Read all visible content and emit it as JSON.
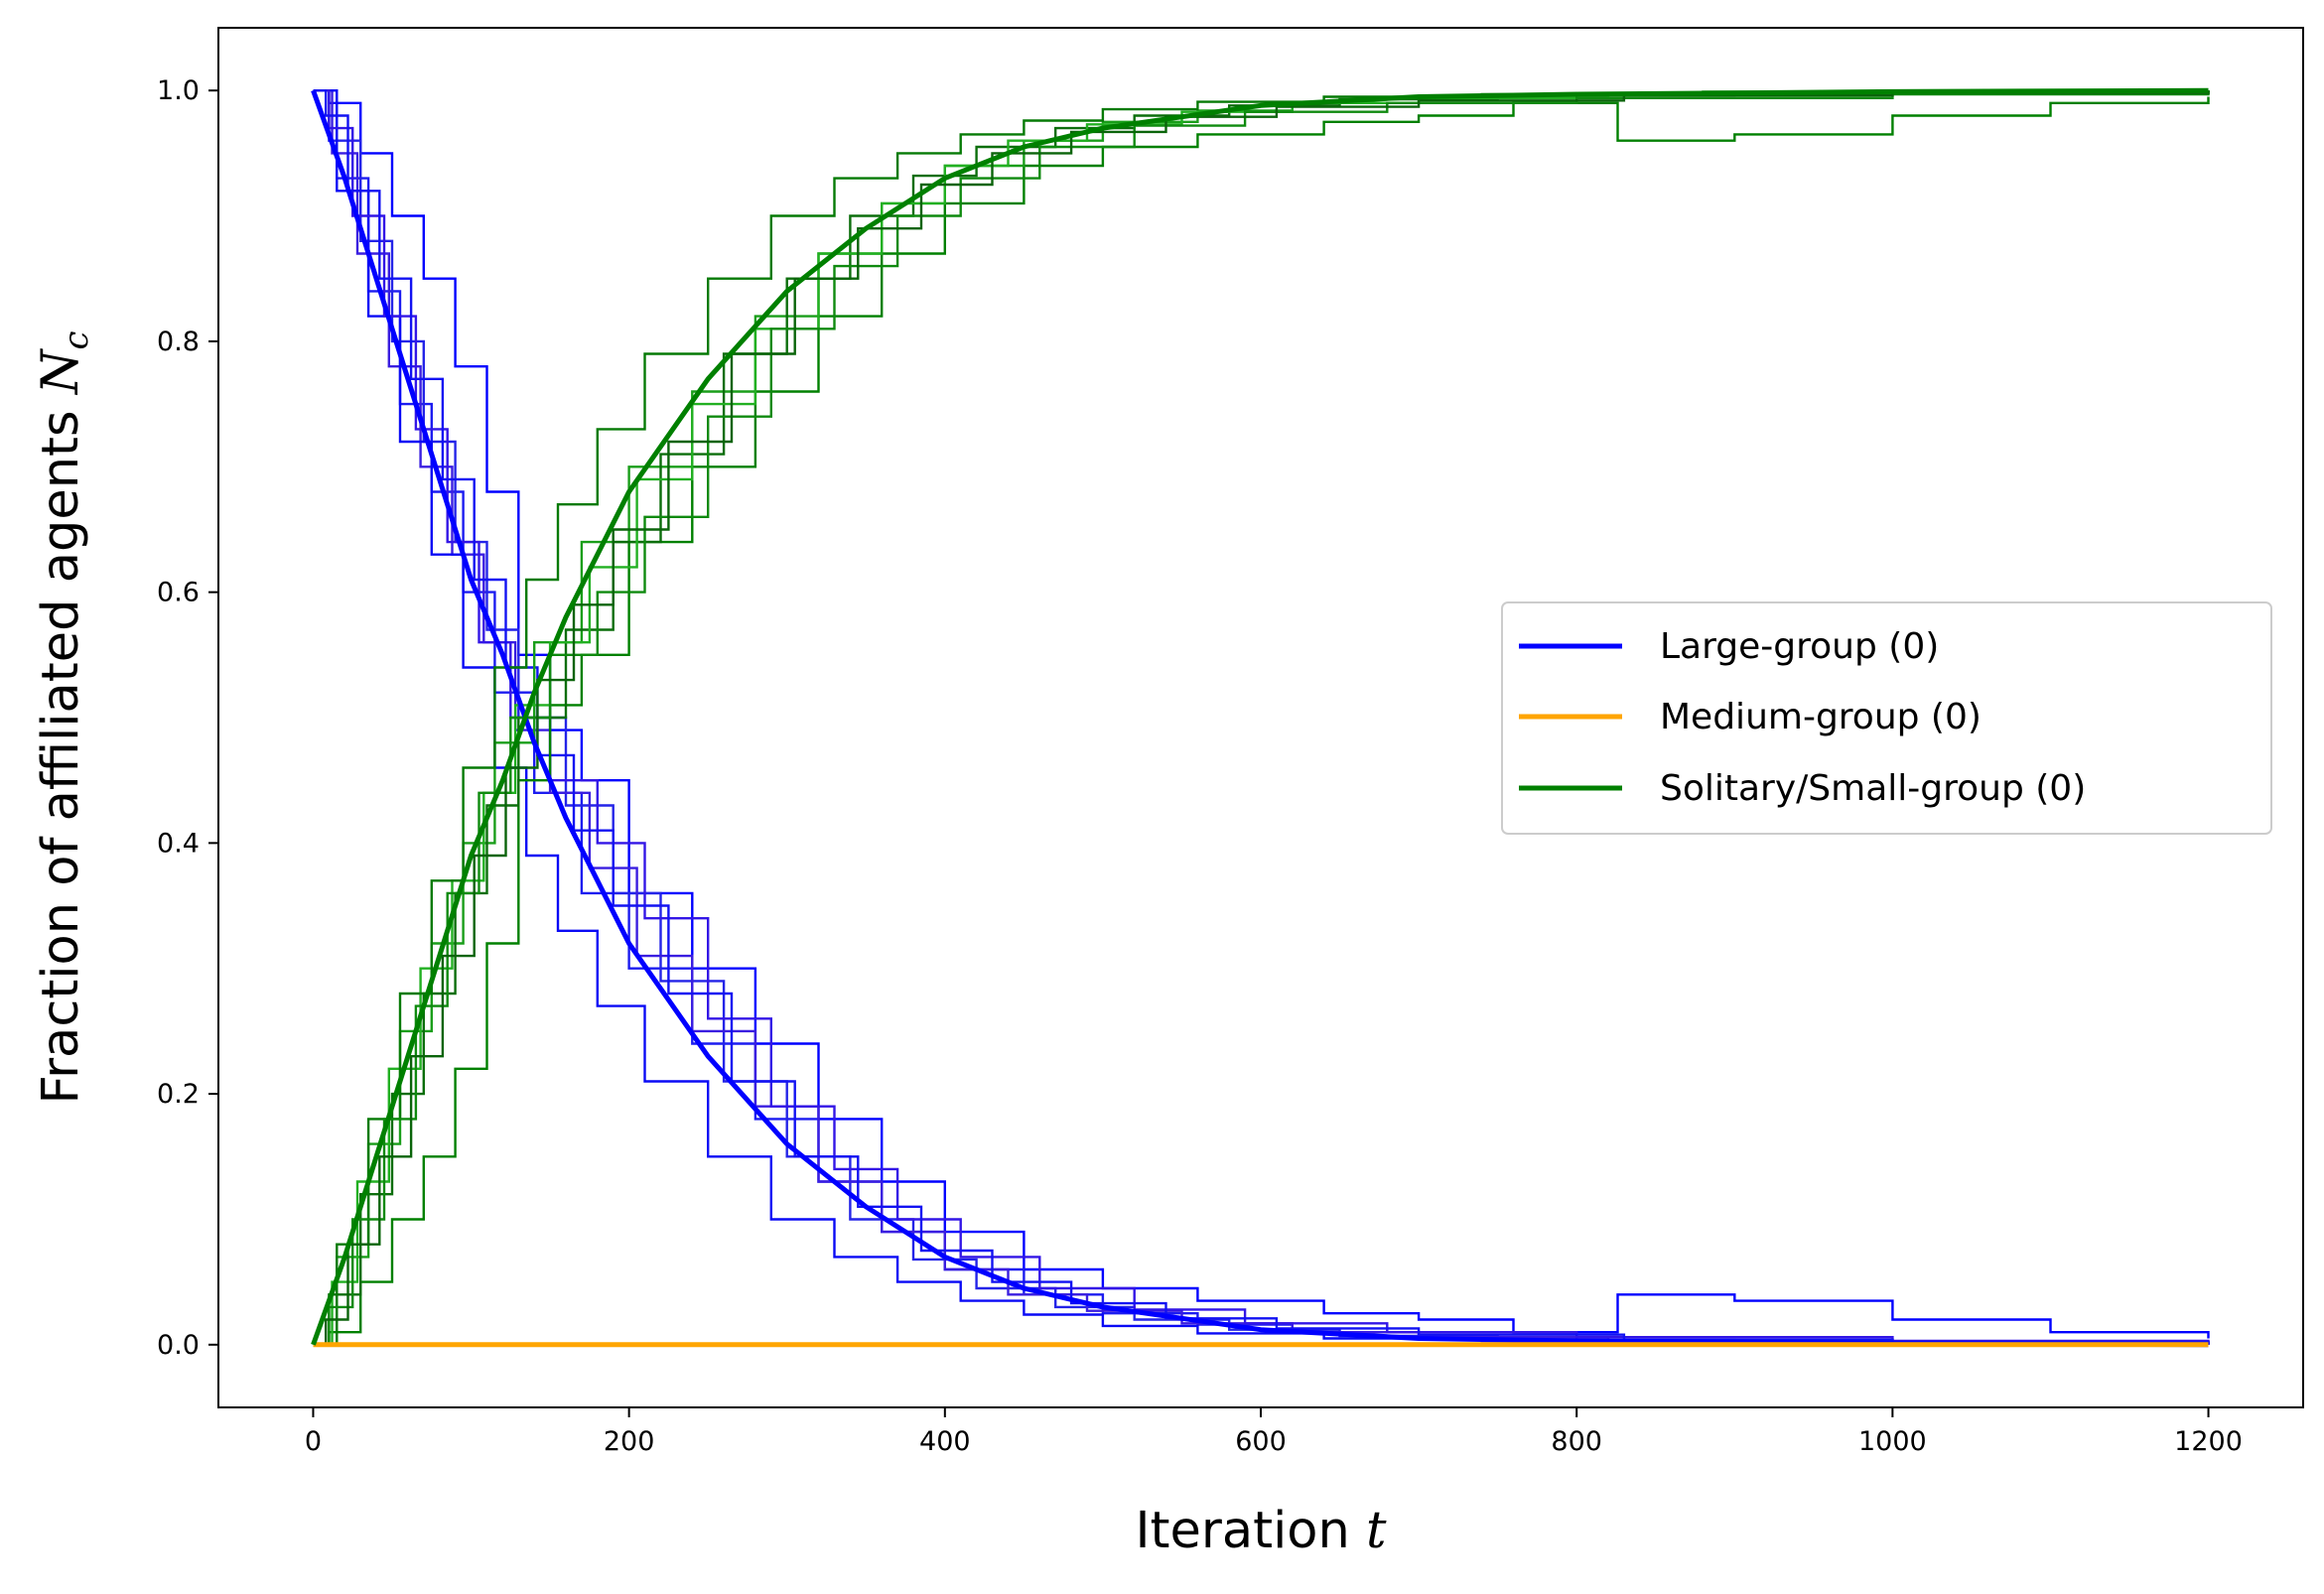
{
  "chart_data": {
    "type": "line",
    "title": "",
    "xlabel": "Iteration",
    "xlabel_symbol": "t",
    "ylabel": "Fraction of affiliated agents",
    "ylabel_symbol": "N",
    "ylabel_symbol_sub": "c",
    "xlim": [
      -60,
      1260
    ],
    "ylim": [
      -0.05,
      1.05
    ],
    "x_ticks": [
      0,
      200,
      400,
      600,
      800,
      1000,
      1200
    ],
    "x_tick_labels": [
      "0",
      "200",
      "400",
      "600",
      "800",
      "1000",
      "1200"
    ],
    "y_ticks": [
      0.0,
      0.2,
      0.4,
      0.6,
      0.8,
      1.0
    ],
    "y_tick_labels": [
      "0.0",
      "0.2",
      "0.4",
      "0.6",
      "0.8",
      "1.0"
    ],
    "grid": false,
    "legend_position": "center-right",
    "legend": [
      {
        "label": "Large-group (0)",
        "color": "#0000ff"
      },
      {
        "label": "Medium-group (0)",
        "color": "#ffa500"
      },
      {
        "label": "Solitary/Small-group (0)",
        "color": "#008000"
      }
    ],
    "series": [
      {
        "name": "Large-group (0)",
        "color": "#0000ff",
        "x": [
          0,
          20,
          40,
          60,
          80,
          100,
          120,
          140,
          160,
          180,
          200,
          250,
          300,
          350,
          400,
          450,
          500,
          600,
          700,
          800,
          1000,
          1200
        ],
        "y": [
          1.0,
          0.93,
          0.85,
          0.77,
          0.69,
          0.61,
          0.55,
          0.48,
          0.42,
          0.37,
          0.32,
          0.23,
          0.16,
          0.11,
          0.07,
          0.045,
          0.03,
          0.012,
          0.005,
          0.003,
          0.001,
          0.0
        ]
      },
      {
        "name": "Medium-group (0)",
        "color": "#ffa500",
        "x": [
          0,
          1200
        ],
        "y": [
          0.0,
          0.0
        ]
      },
      {
        "name": "Solitary/Small-group (0)",
        "color": "#008000",
        "x": [
          0,
          20,
          40,
          60,
          80,
          100,
          120,
          140,
          160,
          180,
          200,
          250,
          300,
          350,
          400,
          450,
          500,
          600,
          700,
          800,
          1000,
          1200
        ],
        "y": [
          0.0,
          0.07,
          0.15,
          0.23,
          0.31,
          0.39,
          0.45,
          0.52,
          0.58,
          0.63,
          0.68,
          0.77,
          0.84,
          0.89,
          0.93,
          0.955,
          0.97,
          0.988,
          0.995,
          0.997,
          0.999,
          1.0
        ]
      }
    ],
    "runs": [
      {
        "group": "Large-group (0)",
        "color": "#0000ff",
        "x": [
          0,
          10,
          30,
          50,
          70,
          90,
          110,
          130,
          150,
          170,
          200,
          240,
          280,
          320,
          360,
          400,
          450,
          500,
          560,
          640,
          700,
          760,
          826,
          900,
          1000,
          1100,
          1200
        ],
        "y": [
          1.0,
          0.99,
          0.95,
          0.9,
          0.85,
          0.78,
          0.68,
          0.55,
          0.49,
          0.45,
          0.36,
          0.3,
          0.24,
          0.18,
          0.13,
          0.09,
          0.06,
          0.045,
          0.035,
          0.025,
          0.02,
          0.01,
          0.04,
          0.035,
          0.02,
          0.01,
          0.005
        ]
      },
      {
        "group": "Large-group (0)",
        "color": "#1c1cf0",
        "x": [
          0,
          15,
          35,
          55,
          75,
          95,
          115,
          140,
          170,
          200,
          240,
          280,
          320,
          360,
          400,
          450,
          500,
          560,
          620,
          700,
          800,
          1000,
          1200
        ],
        "y": [
          1.0,
          0.93,
          0.84,
          0.75,
          0.68,
          0.6,
          0.52,
          0.44,
          0.36,
          0.3,
          0.24,
          0.18,
          0.13,
          0.09,
          0.06,
          0.04,
          0.025,
          0.016,
          0.01,
          0.006,
          0.004,
          0.002,
          0.0
        ]
      },
      {
        "group": "Large-group (0)",
        "color": "#2424e8",
        "x": [
          0,
          10,
          30,
          50,
          70,
          90,
          110,
          130,
          160,
          190,
          220,
          260,
          300,
          340,
          380,
          420,
          470,
          520,
          580,
          650,
          750,
          900,
          1200
        ],
        "y": [
          1.0,
          0.96,
          0.88,
          0.8,
          0.72,
          0.64,
          0.57,
          0.5,
          0.43,
          0.36,
          0.29,
          0.21,
          0.15,
          0.1,
          0.068,
          0.045,
          0.03,
          0.02,
          0.012,
          0.007,
          0.004,
          0.002,
          0.0
        ]
      },
      {
        "group": "Large-group (0)",
        "color": "#3a1ee0",
        "x": [
          0,
          12,
          28,
          48,
          68,
          88,
          108,
          128,
          150,
          175,
          205,
          240,
          280,
          320,
          360,
          400,
          440,
          490,
          550,
          620,
          700,
          820,
          1000,
          1200
        ],
        "y": [
          1.0,
          0.95,
          0.87,
          0.78,
          0.7,
          0.63,
          0.56,
          0.49,
          0.44,
          0.38,
          0.31,
          0.25,
          0.19,
          0.13,
          0.09,
          0.06,
          0.04,
          0.027,
          0.017,
          0.01,
          0.006,
          0.003,
          0.001,
          0.0
        ]
      },
      {
        "group": "Large-group (0)",
        "color": "#0a0af5",
        "x": [
          0,
          15,
          35,
          55,
          75,
          95,
          115,
          135,
          155,
          180,
          210,
          250,
          290,
          330,
          370,
          410,
          450,
          500,
          560,
          640,
          740,
          880,
          1200
        ],
        "y": [
          1.0,
          0.92,
          0.82,
          0.72,
          0.63,
          0.54,
          0.46,
          0.39,
          0.33,
          0.27,
          0.21,
          0.15,
          0.1,
          0.07,
          0.05,
          0.035,
          0.024,
          0.015,
          0.009,
          0.005,
          0.003,
          0.001,
          0.0
        ]
      },
      {
        "group": "Large-group (0)",
        "color": "#3316e6",
        "x": [
          0,
          10,
          25,
          45,
          65,
          85,
          105,
          125,
          150,
          180,
          210,
          250,
          290,
          330,
          370,
          410,
          460,
          520,
          590,
          680,
          800,
          1000,
          1200
        ],
        "y": [
          1.0,
          0.97,
          0.9,
          0.82,
          0.73,
          0.64,
          0.56,
          0.5,
          0.45,
          0.4,
          0.34,
          0.26,
          0.19,
          0.14,
          0.1,
          0.07,
          0.045,
          0.028,
          0.017,
          0.01,
          0.006,
          0.003,
          0.0
        ]
      },
      {
        "group": "Large-group (0)",
        "color": "#1212f2",
        "x": [
          0,
          8,
          22,
          42,
          62,
          82,
          102,
          122,
          142,
          165,
          190,
          225,
          265,
          305,
          345,
          385,
          430,
          480,
          540,
          610,
          700,
          830,
          1000,
          1200
        ],
        "y": [
          1.0,
          0.98,
          0.92,
          0.85,
          0.77,
          0.69,
          0.61,
          0.54,
          0.47,
          0.41,
          0.35,
          0.28,
          0.21,
          0.15,
          0.11,
          0.075,
          0.05,
          0.033,
          0.021,
          0.013,
          0.008,
          0.004,
          0.002,
          0.0
        ]
      }
    ],
    "runs_green": [
      {
        "group": "Solitary/Small-group (0)",
        "color": "#008000",
        "x": [
          0,
          10,
          30,
          50,
          70,
          90,
          110,
          130,
          150,
          170,
          200,
          240,
          280,
          320,
          360,
          400,
          450,
          500,
          560,
          640,
          700,
          760,
          826,
          900,
          1000,
          1100,
          1200
        ],
        "y": [
          0.0,
          0.01,
          0.05,
          0.1,
          0.15,
          0.22,
          0.32,
          0.45,
          0.51,
          0.55,
          0.64,
          0.7,
          0.76,
          0.82,
          0.87,
          0.91,
          0.94,
          0.955,
          0.965,
          0.975,
          0.98,
          0.99,
          0.96,
          0.965,
          0.98,
          0.99,
          0.995
        ]
      },
      {
        "group": "Solitary/Small-group (0)",
        "color": "#1a9e1a",
        "x": [
          0,
          15,
          35,
          55,
          75,
          95,
          115,
          140,
          170,
          200,
          240,
          280,
          320,
          360,
          400,
          450,
          500,
          560,
          620,
          700,
          800,
          1000,
          1200
        ],
        "y": [
          0.0,
          0.07,
          0.16,
          0.25,
          0.32,
          0.4,
          0.48,
          0.56,
          0.64,
          0.7,
          0.76,
          0.82,
          0.87,
          0.91,
          0.94,
          0.96,
          0.975,
          0.984,
          0.99,
          0.994,
          0.996,
          0.998,
          1.0
        ]
      },
      {
        "group": "Solitary/Small-group (0)",
        "color": "#0c6e0c",
        "x": [
          0,
          10,
          30,
          50,
          70,
          90,
          110,
          130,
          160,
          190,
          220,
          260,
          300,
          340,
          380,
          420,
          470,
          520,
          580,
          650,
          750,
          900,
          1200
        ],
        "y": [
          0.0,
          0.04,
          0.12,
          0.2,
          0.28,
          0.36,
          0.43,
          0.5,
          0.57,
          0.64,
          0.71,
          0.79,
          0.85,
          0.9,
          0.932,
          0.955,
          0.97,
          0.98,
          0.988,
          0.993,
          0.996,
          0.998,
          1.0
        ]
      },
      {
        "group": "Solitary/Small-group (0)",
        "color": "#22b022",
        "x": [
          0,
          12,
          28,
          48,
          68,
          88,
          108,
          128,
          150,
          175,
          205,
          240,
          280,
          320,
          360,
          400,
          440,
          490,
          550,
          620,
          700,
          820,
          1000,
          1200
        ],
        "y": [
          0.0,
          0.05,
          0.13,
          0.22,
          0.3,
          0.37,
          0.44,
          0.51,
          0.56,
          0.62,
          0.69,
          0.75,
          0.81,
          0.87,
          0.91,
          0.94,
          0.96,
          0.973,
          0.983,
          0.99,
          0.994,
          0.997,
          0.999,
          1.0
        ]
      },
      {
        "group": "Solitary/Small-group (0)",
        "color": "#067a06",
        "x": [
          0,
          15,
          35,
          55,
          75,
          95,
          115,
          135,
          155,
          180,
          210,
          250,
          290,
          330,
          370,
          410,
          450,
          500,
          560,
          640,
          740,
          880,
          1200
        ],
        "y": [
          0.0,
          0.08,
          0.18,
          0.28,
          0.37,
          0.46,
          0.54,
          0.61,
          0.67,
          0.73,
          0.79,
          0.85,
          0.9,
          0.93,
          0.95,
          0.965,
          0.976,
          0.985,
          0.991,
          0.995,
          0.997,
          0.999,
          1.0
        ]
      },
      {
        "group": "Solitary/Small-group (0)",
        "color": "#0f8a0f",
        "x": [
          0,
          10,
          25,
          45,
          65,
          85,
          105,
          125,
          150,
          180,
          210,
          250,
          290,
          330,
          370,
          410,
          460,
          520,
          590,
          680,
          800,
          1000,
          1200
        ],
        "y": [
          0.0,
          0.03,
          0.1,
          0.18,
          0.27,
          0.36,
          0.44,
          0.5,
          0.55,
          0.6,
          0.66,
          0.74,
          0.81,
          0.86,
          0.9,
          0.93,
          0.955,
          0.972,
          0.983,
          0.99,
          0.994,
          0.997,
          1.0
        ]
      },
      {
        "group": "Solitary/Small-group (0)",
        "color": "#0a640a",
        "x": [
          0,
          8,
          22,
          42,
          62,
          82,
          102,
          122,
          142,
          165,
          190,
          225,
          265,
          305,
          345,
          385,
          430,
          480,
          540,
          610,
          700,
          830,
          1000,
          1200
        ],
        "y": [
          0.0,
          0.02,
          0.08,
          0.15,
          0.23,
          0.31,
          0.39,
          0.46,
          0.53,
          0.59,
          0.65,
          0.72,
          0.79,
          0.85,
          0.89,
          0.925,
          0.95,
          0.967,
          0.979,
          0.987,
          0.992,
          0.996,
          0.998,
          1.0
        ]
      }
    ]
  }
}
